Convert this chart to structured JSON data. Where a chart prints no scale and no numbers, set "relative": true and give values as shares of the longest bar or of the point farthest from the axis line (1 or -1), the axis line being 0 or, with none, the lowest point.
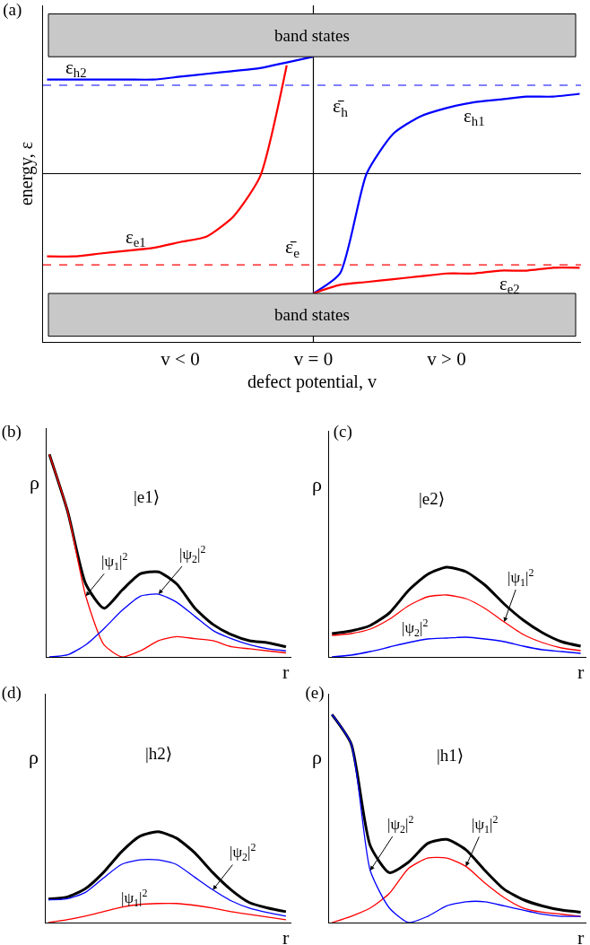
{
  "chart_data": [
    {
      "type": "line",
      "title": "(a)",
      "xlabel": "defect potential, v",
      "ylabel": "energy, ε",
      "relative": true,
      "tick_labels": "x",
      "grid": false,
      "legend": false,
      "categories": [
        null,
        null,
        null,
        null,
        null,
        "v < 0",
        null,
        null,
        null,
        null,
        "v = 0",
        null,
        null,
        null,
        null,
        "v > 0",
        null,
        null,
        null,
        null,
        null
      ],
      "series": [
        {
          "name": "ε$_{h2}$",
          "color": "#0000ff",
          "values": [
            0.92,
            0.92,
            0.92,
            0.92,
            0.92,
            0.93,
            0.94,
            0.95,
            0.96,
            0.98,
            1.0,
            null,
            null,
            null,
            null,
            null,
            null,
            null,
            null,
            null,
            null
          ]
        },
        {
          "name": "ε$_{h1}$",
          "color": "#0000ff",
          "values": [
            null,
            null,
            null,
            null,
            null,
            null,
            null,
            null,
            null,
            null,
            0.17,
            0.24,
            0.59,
            0.73,
            0.79,
            0.82,
            0.84,
            0.85,
            0.86,
            0.86,
            0.87
          ]
        },
        {
          "name": "ε$_{e1}$",
          "color": "#ff0000",
          "values": [
            0.3,
            0.3,
            0.31,
            0.32,
            0.33,
            0.35,
            0.37,
            0.44,
            0.58,
            0.97,
            null,
            null,
            null,
            null,
            null,
            null,
            null,
            null,
            null,
            null,
            null
          ]
        },
        {
          "name": "ε$_{e2}$",
          "color": "#ff0000",
          "values": [
            null,
            null,
            null,
            null,
            null,
            null,
            null,
            null,
            null,
            null,
            0.17,
            0.2,
            0.21,
            0.22,
            0.23,
            0.24,
            0.24,
            0.25,
            0.25,
            0.26,
            0.26
          ]
        }
      ],
      "ref_lines": [
        {
          "axis": "y",
          "value": 0.59,
          "color": "#000000",
          "line_style": "solid"
        },
        {
          "axis": "y",
          "value": 0.9,
          "color": "#0000ff",
          "line_style": "dashed",
          "label": "ε̄$_{h}$"
        },
        {
          "axis": "y",
          "value": 0.27,
          "color": "#ff0000",
          "line_style": "dashed",
          "label": "ε̄$_{e}$"
        },
        {
          "axis": "x",
          "value": "v = 0",
          "color": "#000000",
          "line_style": "solid"
        }
      ],
      "bands": [
        {
          "axis": "y",
          "from": 1.0,
          "to": 1.15,
          "label": "band states",
          "color": "#c8c8c8"
        },
        {
          "axis": "y",
          "from": 0.02,
          "to": 0.17,
          "label": "band states",
          "color": "#c8c8c8"
        }
      ]
    },
    {
      "type": "line",
      "title": "(b)",
      "xlabel": "r",
      "ylabel": "ρ",
      "relative": true,
      "tick_labels": false,
      "grid": false,
      "legend": false,
      "annotations": [
        "|e1⟩"
      ],
      "categories": [
        null,
        null,
        null,
        null,
        null,
        null,
        null,
        null,
        null,
        null,
        null,
        null,
        null,
        null
      ],
      "series": [
        {
          "color": "#000000",
          "values": [
            1.0,
            0.72,
            0.36,
            0.24,
            0.33,
            0.41,
            0.42,
            0.36,
            0.24,
            0.16,
            0.11,
            0.08,
            0.07,
            0.05
          ]
        },
        {
          "name": "|ψ$_{1}$|$^{2}$",
          "color": "#ff0000",
          "values": [
            1.0,
            0.72,
            0.3,
            0.06,
            0.0,
            0.03,
            0.08,
            0.1,
            0.09,
            0.08,
            0.05,
            0.04,
            0.03,
            0.02
          ]
        },
        {
          "name": "|ψ$_{2}$|$^{2}$",
          "color": "#0000ff",
          "values": [
            0,
            0.01,
            0.06,
            0.14,
            0.23,
            0.3,
            0.31,
            0.27,
            0.2,
            0.13,
            0.09,
            0.06,
            0.04,
            0.03
          ]
        }
      ]
    },
    {
      "type": "line",
      "title": "(c)",
      "xlabel": "r",
      "ylabel": "ρ",
      "relative": true,
      "tick_labels": false,
      "grid": false,
      "legend": false,
      "annotations": [
        "|e2⟩"
      ],
      "categories": [
        null,
        null,
        null,
        null,
        null,
        null,
        null,
        null,
        null,
        null,
        null,
        null,
        null,
        null
      ],
      "series": [
        {
          "color": "#000000",
          "values": [
            0.26,
            0.29,
            0.35,
            0.49,
            0.74,
            0.92,
            1.0,
            0.95,
            0.8,
            0.59,
            0.41,
            0.27,
            0.17,
            0.12
          ]
        },
        {
          "name": "|ψ$_{1}$|$^{2}$",
          "color": "#ff0000",
          "values": [
            0.24,
            0.26,
            0.31,
            0.42,
            0.57,
            0.67,
            0.69,
            0.65,
            0.54,
            0.39,
            0.25,
            0.16,
            0.1,
            0.07
          ]
        },
        {
          "name": "|ψ$_{2}$|$^{2}$",
          "color": "#0000ff",
          "values": [
            0,
            0.02,
            0.06,
            0.11,
            0.16,
            0.2,
            0.21,
            0.22,
            0.2,
            0.17,
            0.12,
            0.08,
            0.06,
            0.04
          ]
        }
      ]
    },
    {
      "type": "line",
      "title": "(d)",
      "xlabel": "r",
      "ylabel": "ρ",
      "relative": true,
      "tick_labels": false,
      "grid": false,
      "legend": false,
      "annotations": [
        "|h2⟩"
      ],
      "categories": [
        null,
        null,
        null,
        null,
        null,
        null,
        null,
        null,
        null,
        null,
        null,
        null,
        null,
        null
      ],
      "series": [
        {
          "color": "#000000",
          "values": [
            0.26,
            0.28,
            0.37,
            0.55,
            0.78,
            0.95,
            1.0,
            0.93,
            0.77,
            0.55,
            0.36,
            0.22,
            0.16,
            0.12
          ]
        },
        {
          "name": "|ψ$_{1}$|$^{2}$",
          "color": "#ff0000",
          "values": [
            0,
            0.03,
            0.07,
            0.12,
            0.17,
            0.2,
            0.21,
            0.21,
            0.19,
            0.16,
            0.12,
            0.09,
            0.06,
            0.03
          ]
        },
        {
          "name": "|ψ$_{2}$|$^{2}$",
          "color": "#0000ff",
          "values": [
            0.25,
            0.26,
            0.33,
            0.49,
            0.64,
            0.69,
            0.69,
            0.64,
            0.5,
            0.36,
            0.24,
            0.16,
            0.11,
            0.07
          ]
        }
      ]
    },
    {
      "type": "line",
      "title": "(e)",
      "xlabel": "r",
      "ylabel": "ρ",
      "relative": true,
      "tick_labels": false,
      "grid": false,
      "legend": false,
      "annotations": [
        "|h1⟩"
      ],
      "categories": [
        null,
        null,
        null,
        null,
        null,
        null,
        null,
        null,
        null,
        null,
        null,
        null,
        null,
        null
      ],
      "series": [
        {
          "color": "#000000",
          "values": [
            1.0,
            0.86,
            0.37,
            0.24,
            0.29,
            0.38,
            0.4,
            0.35,
            0.25,
            0.16,
            0.11,
            0.08,
            0.06,
            0.05
          ]
        },
        {
          "name": "|ψ$_{1}$|$^{2}$",
          "color": "#ff0000",
          "values": [
            0,
            0.03,
            0.07,
            0.14,
            0.26,
            0.31,
            0.31,
            0.27,
            0.19,
            0.12,
            0.07,
            0.05,
            0.04,
            0.03
          ]
        },
        {
          "name": "|ψ$_{2}$|$^{2}$",
          "color": "#0000ff",
          "values": [
            1.0,
            0.86,
            0.25,
            0.07,
            0,
            0.03,
            0.08,
            0.1,
            0.1,
            0.08,
            0.06,
            0.04,
            0.03,
            0.03
          ]
        }
      ]
    }
  ]
}
